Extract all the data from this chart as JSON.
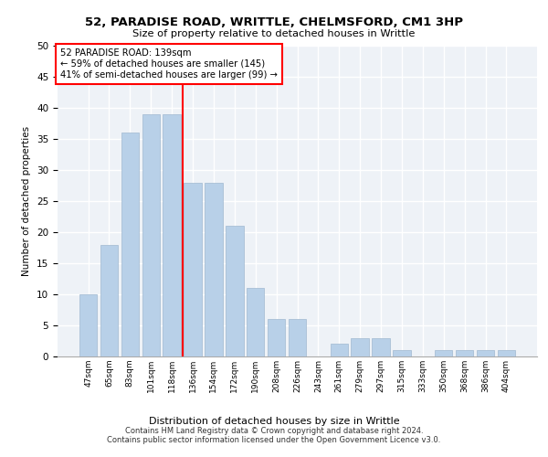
{
  "title1": "52, PARADISE ROAD, WRITTLE, CHELMSFORD, CM1 3HP",
  "title2": "Size of property relative to detached houses in Writtle",
  "xlabel": "Distribution of detached houses by size in Writtle",
  "ylabel": "Number of detached properties",
  "categories": [
    "47sqm",
    "65sqm",
    "83sqm",
    "101sqm",
    "118sqm",
    "136sqm",
    "154sqm",
    "172sqm",
    "190sqm",
    "208sqm",
    "226sqm",
    "243sqm",
    "261sqm",
    "279sqm",
    "297sqm",
    "315sqm",
    "333sqm",
    "350sqm",
    "368sqm",
    "386sqm",
    "404sqm"
  ],
  "values": [
    10,
    18,
    36,
    39,
    39,
    28,
    28,
    21,
    11,
    6,
    6,
    0,
    2,
    3,
    3,
    1,
    0,
    1,
    1,
    1,
    1
  ],
  "bar_color": "#b8d0e8",
  "bar_edgecolor": "#a0b8d0",
  "redline_index": 5,
  "annotation_line1": "52 PARADISE ROAD: 139sqm",
  "annotation_line2": "← 59% of detached houses are smaller (145)",
  "annotation_line3": "41% of semi-detached houses are larger (99) →",
  "ylim": [
    0,
    50
  ],
  "yticks": [
    0,
    5,
    10,
    15,
    20,
    25,
    30,
    35,
    40,
    45,
    50
  ],
  "bg_color": "#eef2f7",
  "footer1": "Contains HM Land Registry data © Crown copyright and database right 2024.",
  "footer2": "Contains public sector information licensed under the Open Government Licence v3.0."
}
